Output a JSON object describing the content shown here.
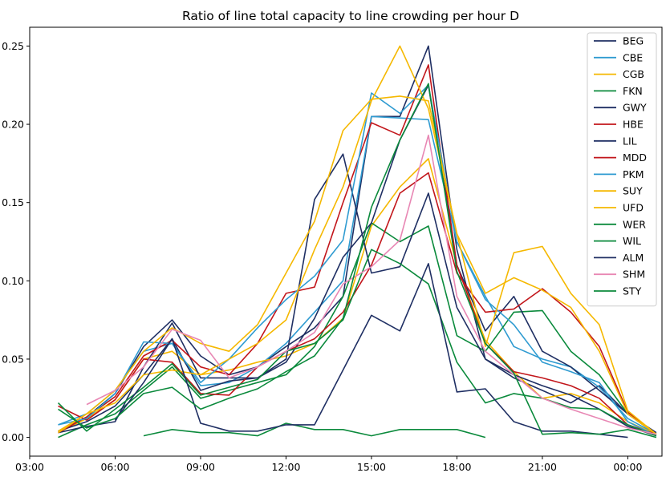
{
  "chart_data": {
    "type": "line",
    "title": "Ratio of line total capacity to line crowding per hour D",
    "xlabel": "",
    "ylabel": "",
    "x_unit": "hour",
    "x_range": [
      3,
      25.2
    ],
    "y_range": [
      -0.012,
      0.262
    ],
    "x_ticks": [
      {
        "value": 3,
        "label": "03:00"
      },
      {
        "value": 6,
        "label": "06:00"
      },
      {
        "value": 9,
        "label": "09:00"
      },
      {
        "value": 12,
        "label": "12:00"
      },
      {
        "value": 15,
        "label": "15:00"
      },
      {
        "value": 18,
        "label": "18:00"
      },
      {
        "value": 21,
        "label": "21:00"
      },
      {
        "value": 24,
        "label": "00:00"
      }
    ],
    "y_ticks": [
      {
        "value": 0.0,
        "label": "0.00"
      },
      {
        "value": 0.05,
        "label": "0.05"
      },
      {
        "value": 0.1,
        "label": "0.10"
      },
      {
        "value": 0.15,
        "label": "0.15"
      },
      {
        "value": 0.2,
        "label": "0.20"
      },
      {
        "value": 0.25,
        "label": "0.25"
      }
    ],
    "grid": false,
    "legend_position": "top-right",
    "series": [
      {
        "name": "BEG",
        "color": "#1f2f63",
        "x": [
          4,
          5,
          6,
          7,
          8,
          9,
          10,
          11,
          12,
          13,
          14,
          15,
          16,
          17,
          18,
          19,
          20,
          21,
          22,
          23,
          24,
          25
        ],
        "y": [
          0.004,
          0.013,
          0.028,
          0.058,
          0.075,
          0.052,
          0.04,
          0.045,
          0.058,
          0.07,
          0.09,
          0.205,
          0.205,
          0.25,
          0.12,
          0.05,
          0.038,
          0.03,
          0.022,
          0.033,
          0.015,
          0.003
        ]
      },
      {
        "name": "CBE",
        "color": "#2f9bd1",
        "x": [
          4,
          5,
          6,
          7,
          8,
          9,
          10,
          11,
          12,
          13,
          14,
          15,
          16,
          17,
          18,
          19,
          20,
          21,
          22,
          23,
          24,
          25
        ],
        "y": [
          0.008,
          0.015,
          0.03,
          0.055,
          0.06,
          0.033,
          0.035,
          0.045,
          0.06,
          0.08,
          0.1,
          0.205,
          0.204,
          0.203,
          0.125,
          0.09,
          0.058,
          0.05,
          0.045,
          0.032,
          0.012,
          0.002
        ]
      },
      {
        "name": "CGB",
        "color": "#f5b800",
        "x": [
          4,
          5,
          6,
          7,
          8,
          9,
          10,
          11,
          12,
          13,
          14,
          15,
          16,
          17,
          18,
          19,
          20,
          21,
          22,
          23,
          24,
          25
        ],
        "y": [
          0.003,
          0.012,
          0.024,
          0.05,
          0.055,
          0.04,
          0.043,
          0.048,
          0.052,
          0.06,
          0.076,
          0.135,
          0.16,
          0.178,
          0.11,
          0.062,
          0.042,
          0.025,
          0.028,
          0.022,
          0.01,
          0.002
        ]
      },
      {
        "name": "FKN",
        "color": "#0b8a3c",
        "x": [
          4,
          5,
          6,
          7,
          8,
          9,
          10,
          11,
          12,
          13,
          14,
          15,
          16,
          17,
          18,
          19,
          20,
          21,
          22,
          23,
          24,
          25
        ],
        "y": [
          0.0,
          0.008,
          0.015,
          0.03,
          0.045,
          0.025,
          0.03,
          0.035,
          0.04,
          0.058,
          0.09,
          0.137,
          0.125,
          0.135,
          0.065,
          0.055,
          0.08,
          0.081,
          0.055,
          0.04,
          0.015,
          0.002
        ]
      },
      {
        "name": "GWY",
        "color": "#1f2f63",
        "x": [
          4,
          5,
          6,
          7,
          8,
          9,
          10,
          11,
          12,
          13,
          14,
          15,
          16,
          17,
          18,
          19,
          20,
          21,
          22,
          23,
          24,
          25
        ],
        "y": [
          0.004,
          0.01,
          0.02,
          0.04,
          0.063,
          0.03,
          0.036,
          0.038,
          0.048,
          0.076,
          0.115,
          0.137,
          0.19,
          0.225,
          0.11,
          0.068,
          0.09,
          0.055,
          0.045,
          0.03,
          0.015,
          0.002
        ]
      },
      {
        "name": "HBE",
        "color": "#c2161b",
        "x": [
          4,
          5,
          6,
          7,
          8,
          9,
          10,
          11,
          12,
          13,
          14,
          15,
          16,
          17,
          18,
          19,
          20,
          21,
          22,
          23,
          24,
          25
        ],
        "y": [
          0.02,
          0.011,
          0.024,
          0.05,
          0.048,
          0.028,
          0.027,
          0.045,
          0.055,
          0.063,
          0.08,
          0.11,
          0.156,
          0.169,
          0.105,
          0.08,
          0.082,
          0.095,
          0.08,
          0.058,
          0.016,
          0.002
        ]
      },
      {
        "name": "LIL",
        "color": "#1f2f63",
        "x": [
          4,
          5,
          6,
          7,
          8,
          9,
          10,
          11,
          12,
          13,
          14,
          15,
          16,
          17,
          18,
          19,
          20,
          21,
          22,
          23,
          24,
          25
        ],
        "y": [
          0.003,
          0.007,
          0.01,
          0.045,
          0.073,
          0.038,
          0.038,
          0.038,
          0.05,
          0.152,
          0.181,
          0.105,
          0.109,
          0.156,
          0.083,
          0.05,
          0.04,
          0.033,
          0.027,
          0.018,
          0.007,
          0.001
        ]
      },
      {
        "name": "MDD",
        "color": "#c2161b",
        "x": [
          4,
          5,
          6,
          7,
          8,
          9,
          10,
          11,
          12,
          13,
          14,
          15,
          16,
          17,
          18,
          19,
          20,
          21,
          22,
          23,
          24,
          25
        ],
        "y": [
          0.003,
          0.013,
          0.026,
          0.052,
          0.062,
          0.045,
          0.04,
          0.06,
          0.092,
          0.096,
          0.15,
          0.201,
          0.193,
          0.238,
          0.11,
          0.06,
          0.042,
          0.038,
          0.033,
          0.025,
          0.008,
          0.002
        ]
      },
      {
        "name": "PKM",
        "color": "#2f9bd1",
        "x": [
          4,
          5,
          6,
          7,
          8,
          9,
          10,
          11,
          12,
          13,
          14,
          15,
          16,
          17,
          18,
          19,
          20,
          21,
          22,
          23,
          24,
          25
        ],
        "y": [
          0.008,
          0.012,
          0.028,
          0.061,
          0.06,
          0.035,
          0.05,
          0.07,
          0.088,
          0.103,
          0.126,
          0.22,
          0.207,
          0.225,
          0.125,
          0.088,
          0.072,
          0.048,
          0.042,
          0.035,
          0.01,
          0.001
        ]
      },
      {
        "name": "SUY",
        "color": "#f5b800",
        "x": [
          4,
          5,
          6,
          7,
          8,
          9,
          10,
          11,
          12,
          13,
          14,
          15,
          16,
          17,
          18,
          19,
          20,
          21,
          22,
          23,
          24,
          25
        ],
        "y": [
          0.004,
          0.015,
          0.03,
          0.055,
          0.07,
          0.06,
          0.055,
          0.072,
          0.105,
          0.138,
          0.196,
          0.216,
          0.218,
          0.215,
          0.13,
          0.092,
          0.102,
          0.094,
          0.083,
          0.055,
          0.015,
          0.002
        ]
      },
      {
        "name": "UFD",
        "color": "#f5b800",
        "x": [
          4,
          5,
          6,
          7,
          8,
          9,
          10,
          11,
          12,
          13,
          14,
          15,
          16,
          17,
          18,
          19,
          20,
          21,
          22,
          23,
          24,
          25
        ],
        "y": [
          0.003,
          0.015,
          0.022,
          0.04,
          0.043,
          0.04,
          0.05,
          0.06,
          0.075,
          0.12,
          0.16,
          0.215,
          0.25,
          0.21,
          0.13,
          0.058,
          0.118,
          0.122,
          0.092,
          0.072,
          0.017,
          0.002
        ]
      },
      {
        "name": "WER",
        "color": "#0b8a3c",
        "x": [
          7,
          8,
          9,
          10,
          11,
          12,
          13,
          14,
          15,
          16,
          17,
          18,
          19
        ],
        "y": [
          0.001,
          0.005,
          0.003,
          0.003,
          0.001,
          0.009,
          0.005,
          0.005,
          0.001,
          0.005,
          0.005,
          0.005,
          0.0
        ]
      },
      {
        "name": "WIL",
        "color": "#0b8a3c",
        "x": [
          4,
          5,
          6,
          7,
          8,
          9,
          10,
          11,
          12,
          13,
          14,
          15,
          16,
          17,
          18,
          19,
          20,
          21,
          22,
          23,
          24,
          25
        ],
        "y": [
          0.022,
          0.004,
          0.018,
          0.032,
          0.047,
          0.027,
          0.032,
          0.037,
          0.055,
          0.06,
          0.075,
          0.12,
          0.111,
          0.098,
          0.048,
          0.022,
          0.028,
          0.025,
          0.019,
          0.018,
          0.008,
          0.001
        ]
      },
      {
        "name": "ALM",
        "color": "#1f2f63",
        "x": [
          6,
          7,
          8,
          9,
          10,
          11,
          12,
          13,
          14,
          15,
          16,
          17,
          18,
          19,
          20,
          21,
          22,
          23,
          24
        ],
        "y": [
          0.011,
          0.035,
          0.063,
          0.009,
          0.004,
          0.004,
          0.008,
          0.008,
          0.043,
          0.078,
          0.068,
          0.111,
          0.029,
          0.031,
          0.01,
          0.004,
          0.004,
          0.002,
          0.0
        ]
      },
      {
        "name": "SHM",
        "color": "#e887b4",
        "x": [
          5,
          6,
          7,
          8,
          9,
          10,
          11,
          12,
          13,
          14,
          15,
          16,
          17,
          18,
          19,
          20,
          21,
          22,
          23,
          24,
          25
        ],
        "y": [
          0.021,
          0.03,
          0.045,
          0.069,
          0.062,
          0.038,
          0.045,
          0.055,
          0.067,
          0.098,
          0.109,
          0.126,
          0.193,
          0.09,
          0.055,
          0.04,
          0.025,
          0.018,
          0.012,
          0.006,
          0.002
        ]
      },
      {
        "name": "STY",
        "color": "#0b8a3c",
        "x": [
          4,
          5,
          6,
          7,
          8,
          9,
          10,
          11,
          12,
          13,
          14,
          15,
          16,
          17,
          18,
          19,
          20,
          21,
          22,
          23,
          24,
          25
        ],
        "y": [
          0.018,
          0.006,
          0.012,
          0.028,
          0.032,
          0.018,
          0.025,
          0.031,
          0.042,
          0.052,
          0.076,
          0.147,
          0.19,
          0.226,
          0.106,
          0.06,
          0.041,
          0.002,
          0.003,
          0.002,
          0.005,
          0.0
        ]
      }
    ]
  }
}
